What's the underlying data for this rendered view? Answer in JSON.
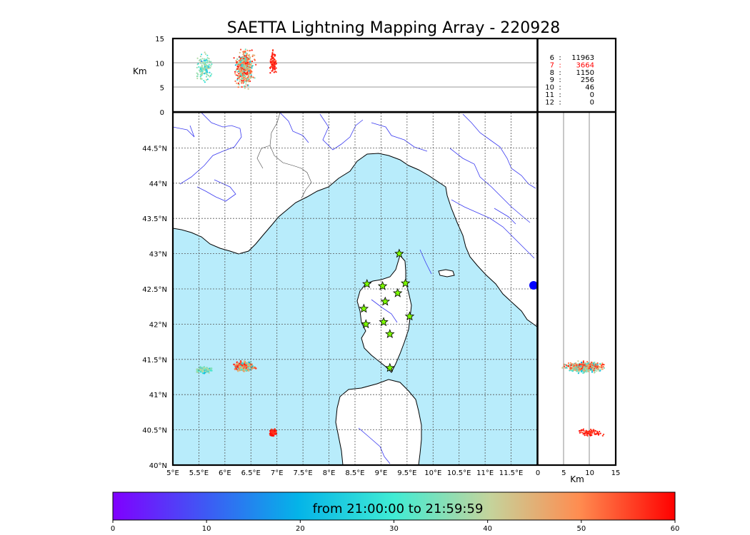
{
  "title": "SAETTA Lightning Mapping Array - 220928",
  "colors": {
    "sea": "#b8ecfb",
    "land": "#ffffff",
    "coast": "#000000",
    "rivers": "#3a3af0",
    "borders": "#444444",
    "grid": "#555555",
    "station_fill": "#7cfc00",
    "highlight_stat": "#ff0000"
  },
  "map": {
    "lon_ticks": [
      "5°E",
      "5.5°E",
      "6°E",
      "6.5°E",
      "7°E",
      "7.5°E",
      "8°E",
      "8.5°E",
      "9°E",
      "9.5°E",
      "10°E",
      "10.5°E",
      "11°E",
      "11.5°E"
    ],
    "lat_ticks": [
      "40°N",
      "40.5°N",
      "41°N",
      "41.5°N",
      "42°N",
      "42.5°N",
      "43°N",
      "43.5°N",
      "44°N",
      "44.5°N"
    ],
    "lon_range": [
      5.0,
      12.0
    ],
    "lat_range": [
      40.0,
      45.0
    ]
  },
  "top_panel": {
    "ylabel": "Km",
    "yticks": [
      "0",
      "5",
      "10",
      "15"
    ],
    "alt_range": [
      0,
      15
    ]
  },
  "right_panel": {
    "xlabel": "Km",
    "xticks": [
      "0",
      "5",
      "10",
      "15"
    ],
    "alt_range": [
      0,
      15
    ]
  },
  "station_stats": [
    {
      "label": "6",
      "sep": ":",
      "count": "11963",
      "highlight": false
    },
    {
      "label": "7",
      "sep": ":",
      "count": "3664",
      "highlight": true
    },
    {
      "label": "8",
      "sep": ":",
      "count": "1150",
      "highlight": false
    },
    {
      "label": "9",
      "sep": ":",
      "count": "256",
      "highlight": false
    },
    {
      "label": "10",
      "sep": ":",
      "count": "46",
      "highlight": false
    },
    {
      "label": "11",
      "sep": ":",
      "count": "0",
      "highlight": false
    },
    {
      "label": "12",
      "sep": ":",
      "count": "0",
      "highlight": false
    }
  ],
  "stations": [
    {
      "lon": 9.35,
      "lat": 43.0
    },
    {
      "lon": 8.73,
      "lat": 42.57
    },
    {
      "lon": 9.03,
      "lat": 42.54
    },
    {
      "lon": 9.47,
      "lat": 42.58
    },
    {
      "lon": 9.32,
      "lat": 42.44
    },
    {
      "lon": 9.08,
      "lat": 42.32
    },
    {
      "lon": 8.67,
      "lat": 42.22
    },
    {
      "lon": 9.55,
      "lat": 42.11
    },
    {
      "lon": 9.05,
      "lat": 42.03
    },
    {
      "lon": 8.71,
      "lat": 42.0
    },
    {
      "lon": 9.17,
      "lat": 41.86
    },
    {
      "lon": 9.17,
      "lat": 41.38
    }
  ],
  "lightning_clusters": [
    {
      "name": "cluster-west",
      "lon": 5.6,
      "lat": 41.35,
      "lon_spread": 0.12,
      "lat_spread": 0.03,
      "alt_center": 9,
      "alt_spread": 2.5,
      "minute_min": 15,
      "minute_max": 40,
      "count": 140
    },
    {
      "name": "cluster-mid",
      "lon": 6.38,
      "lat": 41.4,
      "lon_spread": 0.15,
      "lat_spread": 0.05,
      "alt_center": 9,
      "alt_spread": 3.2,
      "minute_min": 10,
      "minute_max": 60,
      "count": 520
    },
    {
      "name": "cluster-south",
      "lon": 6.93,
      "lat": 40.46,
      "lon_spread": 0.06,
      "lat_spread": 0.04,
      "alt_center": 10,
      "alt_spread": 2,
      "minute_min": 50,
      "minute_max": 60,
      "count": 90
    }
  ],
  "colorbar": {
    "label": "from 21:00:00 to 21:59:59",
    "ticks": [
      "0",
      "10",
      "20",
      "30",
      "40",
      "50",
      "60"
    ],
    "range": [
      0,
      60
    ]
  }
}
